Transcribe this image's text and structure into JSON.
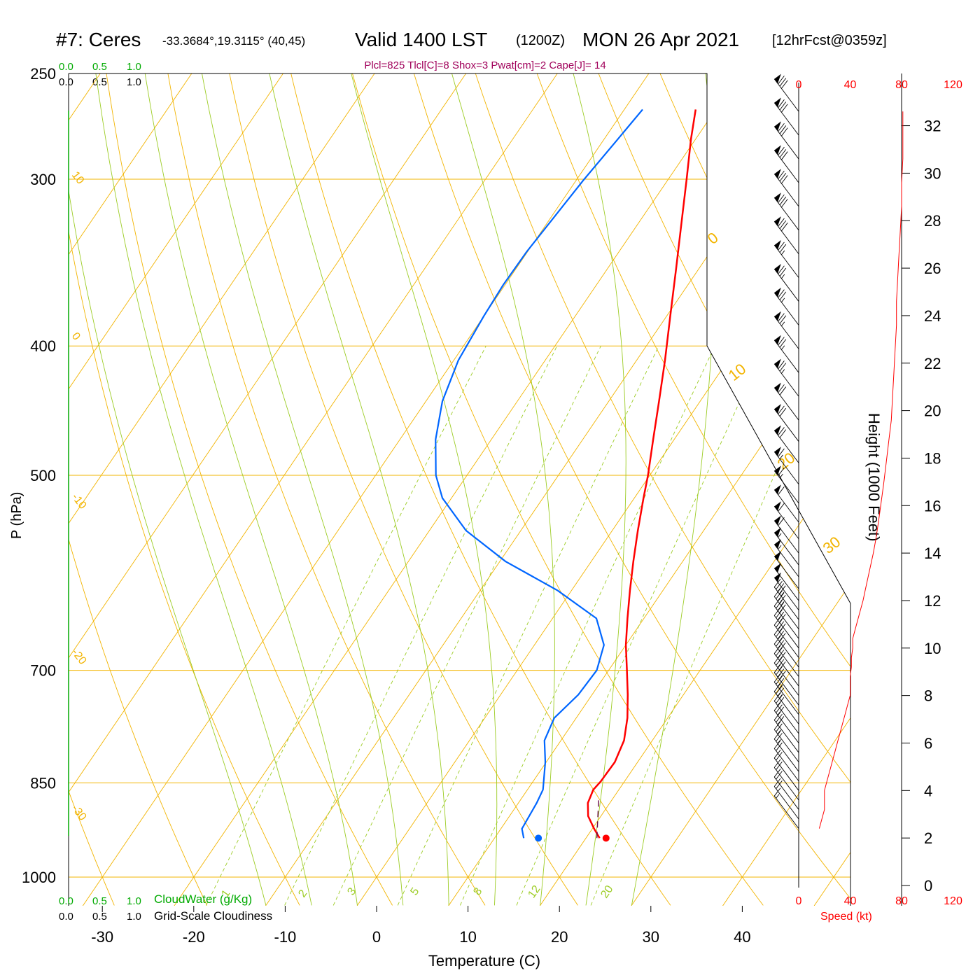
{
  "header": {
    "station": "#7: Ceres",
    "coords": "-33.3684°,19.3115° (40,45)",
    "valid_prefix": "Valid 1400 LST",
    "valid_zulu": "(1200Z)",
    "date": "MON 26 Apr 2021",
    "forecast": "[12hrFcst@0359z]",
    "indices": "Plcl=825 Tlcl[C]=8 Shox=3 Pwat[cm]=2 Cape[J]= 14"
  },
  "legend": {
    "cloudwater_label": "CloudWater (g/Kg)",
    "cloudiness_label": "Grid-Scale Cloudiness",
    "scale_ticks": [
      "0.0",
      "0.5",
      "1.0"
    ]
  },
  "colors": {
    "isobar": "#f2b400",
    "isotherm": "#f2b400",
    "dry_adiabat": "#f2b400",
    "moist_adiabat": "#9ccc24",
    "mixing_ratio": "#9ccc24",
    "temperature": "#ff0000",
    "dewpoint": "#0066ff",
    "indices_text": "#a0005a",
    "speed_axis": "#ff0000",
    "cloudwater": "#00aa00"
  },
  "chart_data": {
    "type": "skew-t",
    "xlabel": "Temperature (C)",
    "ylabel": "P (hPa)",
    "right_ylabel": "Height (1000 Feet)",
    "speed_label": "Speed (kt)",
    "x_ticks": [
      -30,
      -20,
      -10,
      0,
      10,
      20,
      30,
      40
    ],
    "p_ticks": [
      250,
      300,
      400,
      500,
      700,
      850,
      1000
    ],
    "height_ticks_kft": [
      0,
      2,
      4,
      6,
      8,
      10,
      12,
      14,
      16,
      18,
      20,
      22,
      24,
      26,
      28,
      30,
      32
    ],
    "speed_ticks_kt": [
      0,
      40,
      80,
      120
    ],
    "isotherm_labels": [
      "10",
      "0",
      "-10",
      "-20",
      "-30"
    ],
    "dry_adiabat_labels": [
      "0",
      "10",
      "20",
      "30"
    ],
    "mixing_ratio_labels": [
      "1",
      "2",
      "3",
      "5",
      "8",
      "12",
      "20"
    ],
    "temperature": {
      "pressure_hpa": [
        935,
        920,
        900,
        880,
        860,
        848,
        820,
        790,
        760,
        730,
        700,
        670,
        640,
        610,
        580,
        550,
        520,
        500,
        470,
        440,
        410,
        380,
        350,
        320,
        300,
        280,
        266
      ],
      "temp_c": [
        21.5,
        20.2,
        18.6,
        17.6,
        17.2,
        17.4,
        17.5,
        16.9,
        15.6,
        13.9,
        12.0,
        10.0,
        8.2,
        6.4,
        4.6,
        2.8,
        1.0,
        -0.2,
        -2.3,
        -4.5,
        -6.9,
        -9.6,
        -12.5,
        -15.7,
        -18.0,
        -20.5,
        -22.2
      ]
    },
    "dewpoint": {
      "pressure_hpa": [
        935,
        920,
        880,
        860,
        820,
        790,
        760,
        730,
        700,
        670,
        640,
        610,
        580,
        550,
        520,
        500,
        470,
        440,
        410,
        380,
        360,
        340,
        300,
        280,
        266
      ],
      "dewpt_c": [
        13.2,
        12.3,
        12.0,
        11.7,
        9.9,
        8.2,
        7.6,
        8.5,
        8.7,
        7.6,
        4.8,
        -1.5,
        -9.4,
        -16.0,
        -21.0,
        -23.4,
        -26.1,
        -28.2,
        -29.5,
        -30.0,
        -30.2,
        -30.1,
        -29.2,
        -28.5,
        -28.0
      ]
    },
    "surface": {
      "temp_c": 22.2,
      "dewpt_c": 14.8,
      "pressure_hpa": 935
    },
    "parcel_segment": {
      "pressure_hpa": [
        935,
        870
      ],
      "temp_c": [
        21.2,
        18.3
      ]
    },
    "wind": {
      "height_kft": [
        2.4,
        2.8,
        3.2,
        3.6,
        4.0,
        4.4,
        4.8,
        5.2,
        5.6,
        6.0,
        6.4,
        6.8,
        7.2,
        7.6,
        8.0,
        8.4,
        8.8,
        9.2,
        9.6,
        10.0,
        10.4,
        10.8,
        11.2,
        11.6,
        12.0,
        12.5,
        13.0,
        13.5,
        14.0,
        14.6,
        15.3,
        16.1,
        16.9,
        17.8,
        18.7,
        19.6,
        20.6,
        21.6,
        22.6,
        23.6,
        24.6,
        25.6,
        26.6,
        27.6,
        28.6,
        29.6,
        30.6,
        31.6,
        32.6
      ],
      "speed_kt": [
        16,
        18,
        20,
        20,
        20,
        22,
        24,
        26,
        28,
        30,
        32,
        34,
        36,
        38,
        40,
        40,
        40,
        41,
        41,
        42,
        42,
        44,
        46,
        48,
        50,
        52,
        54,
        56,
        58,
        60,
        62,
        64,
        66,
        68,
        70,
        72,
        73,
        74,
        75,
        76,
        76,
        77,
        78,
        79,
        80,
        80,
        81,
        81,
        81
      ]
    }
  }
}
